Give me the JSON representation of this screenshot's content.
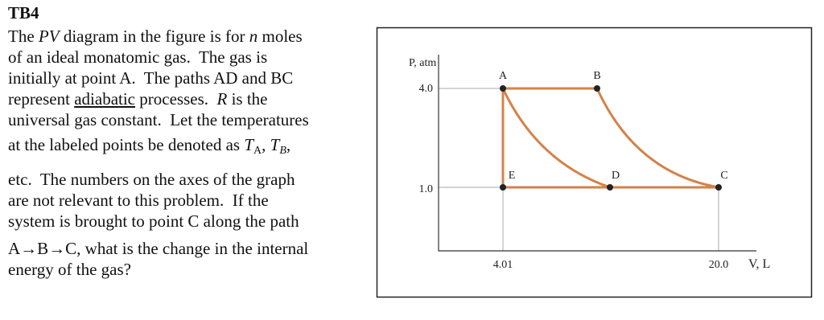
{
  "problem": {
    "title": "TB4",
    "lines": [
      [
        "The ",
        "PV",
        " diagram in the figure is for ",
        "n",
        " moles"
      ],
      [
        "of an ideal monatomic gas.  The gas is"
      ],
      [
        "initially at point A.  The paths AD and BC"
      ],
      [
        "represent ",
        "adiabatic",
        " processes.  ",
        "R",
        " is the"
      ],
      [
        "universal gas constant.  Let the temperatures"
      ],
      [
        "at the labeled points be denoted as ",
        "T",
        "A",
        ", ",
        "T",
        "B",
        ","
      ],
      [
        "etc.  The numbers on the axes of the graph"
      ],
      [
        "are not relevant to this problem.  If the"
      ],
      [
        "system is brought to point C along the path"
      ],
      [
        "A→B→C, what is the change in the internal"
      ],
      [
        "energy of the gas?"
      ]
    ]
  },
  "figure": {
    "y_axis_label": "P, atm",
    "x_axis_label": "V, L",
    "y_labels": [
      "4.0",
      "1.0"
    ],
    "x_labels": [
      "4.01",
      "20.0"
    ],
    "points": [
      "A",
      "B",
      "C",
      "D",
      "E"
    ]
  }
}
